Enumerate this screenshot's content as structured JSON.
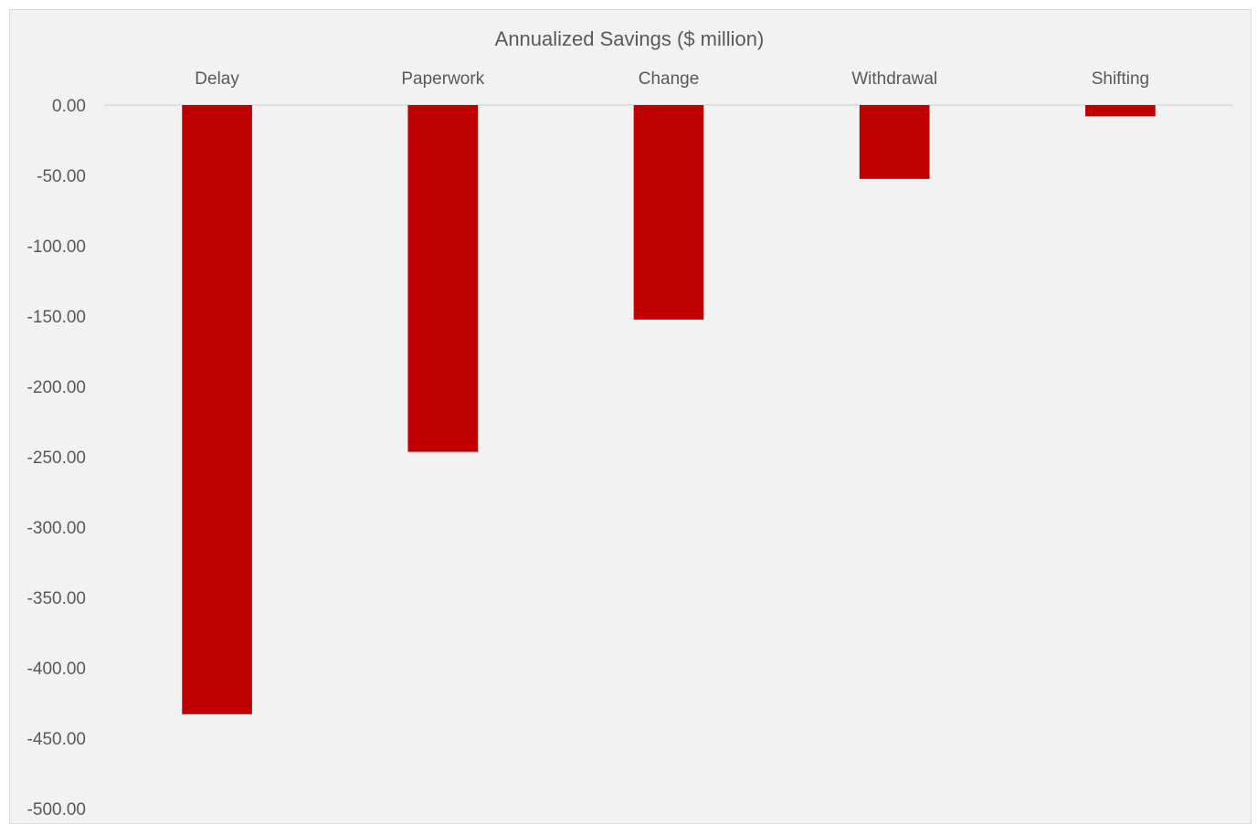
{
  "chart_data": {
    "type": "bar",
    "title": "Annualized Savings ($ million)",
    "xlabel": "",
    "ylabel": "",
    "categories": [
      "Delay",
      "Paperwork",
      "Change",
      "Withdrawal",
      "Shifting"
    ],
    "values": [
      -433,
      -246.5,
      -152.5,
      -52.5,
      -8
    ],
    "ylim": [
      -500,
      0
    ],
    "yticks": [
      0,
      -50,
      -100,
      -150,
      -200,
      -250,
      -300,
      -350,
      -400,
      -450,
      -500
    ],
    "ytick_labels": [
      "0.00",
      "-50.00",
      "-100.00",
      "-150.00",
      "-200.00",
      "-250.00",
      "-300.00",
      "-350.00",
      "-400.00",
      "-450.00",
      "-500.00"
    ],
    "category_axis_position": "top",
    "grid": false,
    "legend": "none",
    "colors": {
      "bar": "#c00000",
      "background": "#f2f2f2",
      "text": "#595959",
      "axis": "#d9d9d9"
    }
  }
}
